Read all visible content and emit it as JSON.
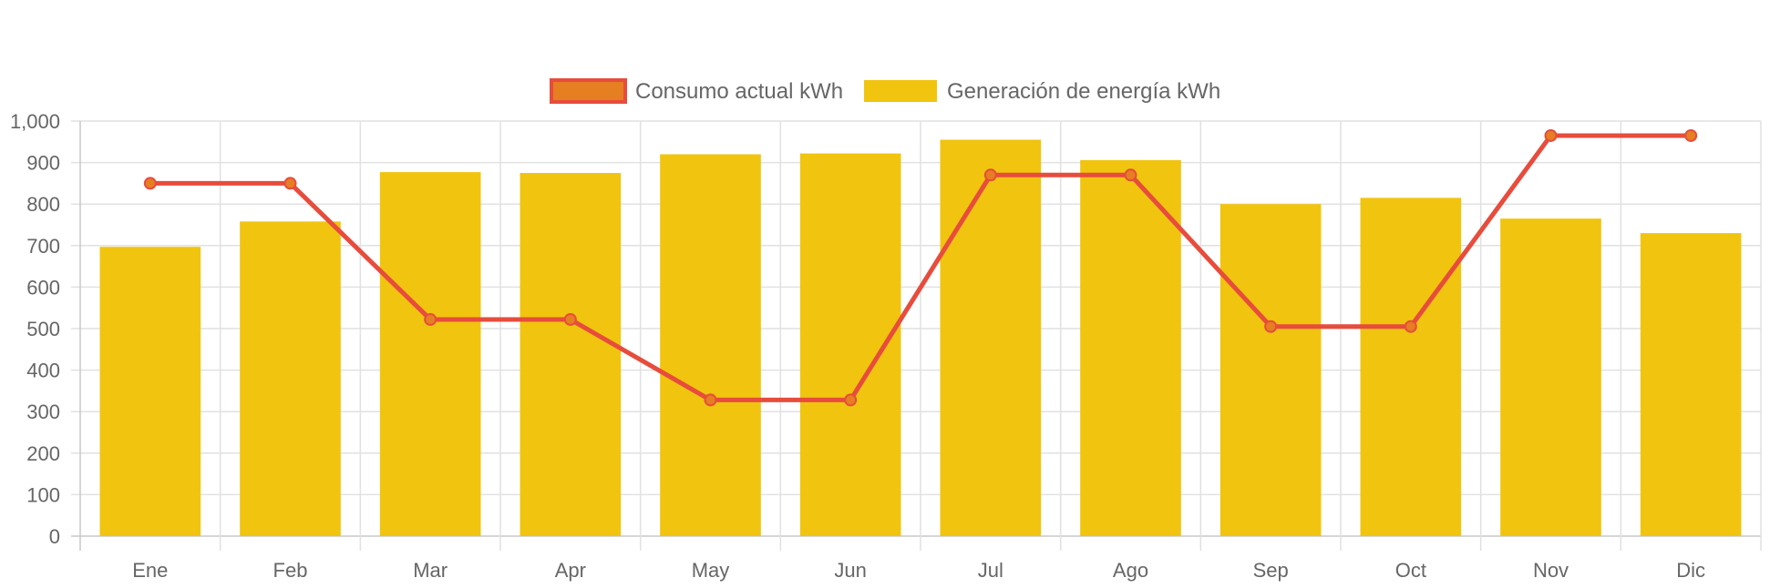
{
  "chart_data": {
    "type": "bar",
    "categories": [
      "Ene",
      "Feb",
      "Mar",
      "Apr",
      "May",
      "Jun",
      "Jul",
      "Ago",
      "Sep",
      "Oct",
      "Nov",
      "Dic"
    ],
    "series": [
      {
        "name": "Consumo actual kWh",
        "type": "line",
        "color": "#e74c3c",
        "point_color": "#e67e22",
        "values": [
          850,
          850,
          522,
          522,
          328,
          328,
          870,
          870,
          505,
          505,
          965,
          965
        ]
      },
      {
        "name": "Generación de energía kWh",
        "type": "bar",
        "color": "#f1c40f",
        "values": [
          697,
          758,
          877,
          875,
          920,
          922,
          955,
          906,
          800,
          815,
          765,
          730
        ]
      }
    ],
    "ylim": [
      0,
      1000
    ],
    "yticks": [
      "0",
      "100",
      "200",
      "300",
      "400",
      "500",
      "600",
      "700",
      "800",
      "900",
      "1,000"
    ],
    "grid": true,
    "legend_position": "top-center"
  }
}
